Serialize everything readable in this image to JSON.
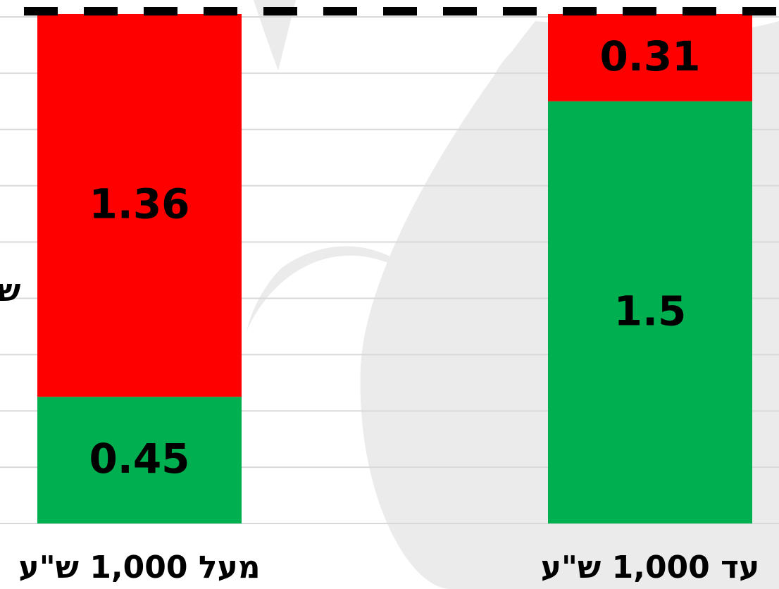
{
  "chart_data": {
    "type": "stacked_bar",
    "ylabel": "ש",
    "categories": [
      "מעל 1,000 ש\"ע",
      "עד 1,000 ש\"ע"
    ],
    "series": [
      {
        "color": "#00b050",
        "values": [
          0.45,
          1.5
        ]
      },
      {
        "color": "#ff0000",
        "values": [
          1.36,
          0.31
        ]
      }
    ],
    "ylim": [
      0,
      1.86
    ],
    "yticks": [
      0,
      0.2,
      0.4,
      0.6,
      0.8,
      1,
      1.2,
      1.4,
      1.6,
      1.8
    ],
    "grid": true,
    "reference_line": 1.82
  }
}
